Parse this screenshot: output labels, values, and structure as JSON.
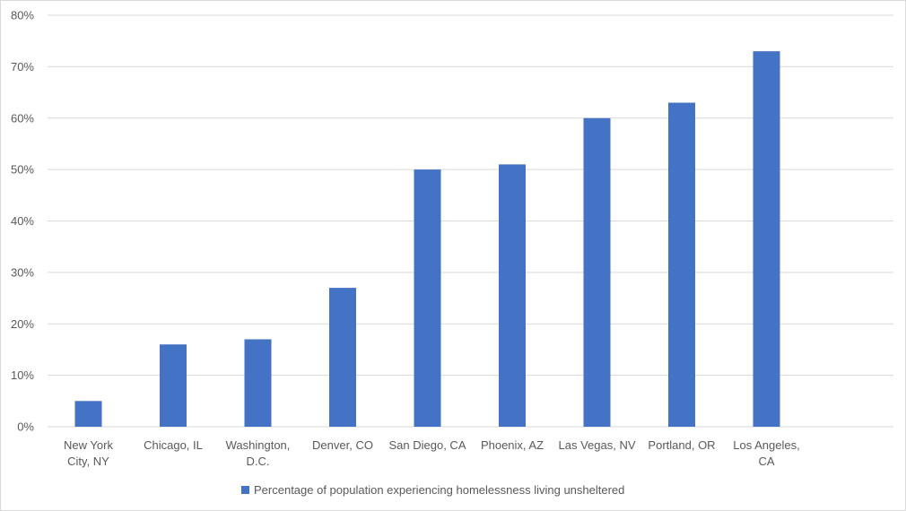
{
  "chart_data": {
    "type": "bar",
    "categories": [
      [
        "New York",
        "City, NY"
      ],
      [
        "Chicago, IL"
      ],
      [
        "Washington,",
        "D.C."
      ],
      [
        "Denver, CO"
      ],
      [
        "San Diego, CA"
      ],
      [
        "Phoenix, AZ"
      ],
      [
        "Las Vegas, NV"
      ],
      [
        "Portland, OR"
      ],
      [
        "Los Angeles,",
        "CA"
      ]
    ],
    "series": [
      {
        "name": "Percentage of population experiencing homelessness living unsheltered",
        "values": [
          5,
          16,
          17,
          27,
          50,
          51,
          60,
          63,
          73
        ],
        "color": "#4472c4"
      }
    ],
    "yticks": [
      "0%",
      "10%",
      "20%",
      "30%",
      "40%",
      "50%",
      "60%",
      "70%",
      "80%"
    ],
    "ylim": [
      0,
      80
    ],
    "grid": true,
    "legend_position": "bottom",
    "gridline_color": "#d9d9d9",
    "text_color": "#595959"
  }
}
